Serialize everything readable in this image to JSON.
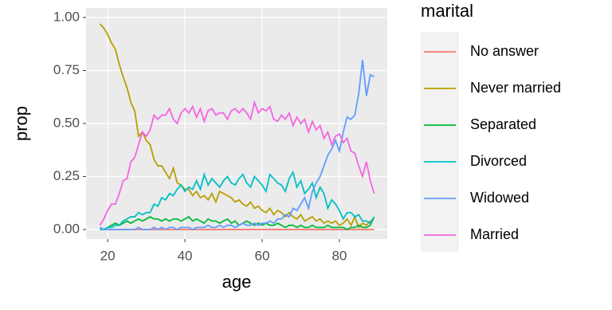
{
  "chart_data": {
    "type": "line",
    "x_label": "age",
    "y_label": "prop",
    "legend_title": "marital",
    "x": [
      18,
      19,
      20,
      21,
      22,
      23,
      24,
      25,
      26,
      27,
      28,
      29,
      30,
      31,
      32,
      33,
      34,
      35,
      36,
      37,
      38,
      39,
      40,
      41,
      42,
      43,
      44,
      45,
      46,
      47,
      48,
      49,
      50,
      51,
      52,
      53,
      54,
      55,
      56,
      57,
      58,
      59,
      60,
      61,
      62,
      63,
      64,
      65,
      66,
      67,
      68,
      69,
      70,
      71,
      72,
      73,
      74,
      75,
      76,
      77,
      78,
      79,
      80,
      81,
      82,
      83,
      84,
      85,
      86,
      87,
      88,
      89
    ],
    "series": [
      {
        "name": "No answer",
        "color": "#F8766D",
        "values": [
          0,
          0,
          0,
          0,
          0,
          0,
          0,
          0,
          0,
          0,
          0,
          0,
          0,
          0,
          0,
          0,
          0,
          0,
          0,
          0,
          0,
          0,
          0,
          0,
          0,
          0,
          0,
          0,
          0,
          0,
          0,
          0,
          0,
          0,
          0,
          0,
          0,
          0,
          0,
          0,
          0,
          0,
          0,
          0,
          0,
          0,
          0,
          0,
          0,
          0,
          0,
          0,
          0,
          0,
          0,
          0,
          0,
          0,
          0,
          0,
          0,
          0,
          0,
          0,
          0,
          0,
          0,
          0,
          0,
          0,
          0,
          0
        ]
      },
      {
        "name": "Never married",
        "color": "#B79F00",
        "values": [
          0.97,
          0.95,
          0.92,
          0.88,
          0.85,
          0.78,
          0.72,
          0.67,
          0.6,
          0.56,
          0.44,
          0.46,
          0.42,
          0.4,
          0.33,
          0.3,
          0.3,
          0.27,
          0.24,
          0.29,
          0.22,
          0.21,
          0.19,
          0.19,
          0.16,
          0.18,
          0.15,
          0.16,
          0.14,
          0.17,
          0.13,
          0.18,
          0.17,
          0.16,
          0.15,
          0.13,
          0.14,
          0.12,
          0.11,
          0.13,
          0.1,
          0.11,
          0.09,
          0.08,
          0.1,
          0.07,
          0.09,
          0.08,
          0.06,
          0.08,
          0.06,
          0.05,
          0.07,
          0.04,
          0.05,
          0.06,
          0.04,
          0.05,
          0.03,
          0.04,
          0.03,
          0.04,
          0.02,
          0.03,
          0.05,
          0.02,
          0.06,
          0.01,
          0.03,
          0.02,
          0.04,
          0.05
        ]
      },
      {
        "name": "Separated",
        "color": "#00BA38",
        "values": [
          0.01,
          0,
          0.01,
          0.02,
          0.03,
          0.02,
          0.03,
          0.04,
          0.03,
          0.04,
          0.05,
          0.04,
          0.05,
          0.06,
          0.05,
          0.05,
          0.04,
          0.05,
          0.04,
          0.05,
          0.05,
          0.04,
          0.05,
          0.06,
          0.04,
          0.05,
          0.04,
          0.03,
          0.05,
          0.04,
          0.04,
          0.03,
          0.04,
          0.05,
          0.03,
          0.04,
          0.02,
          0.03,
          0.04,
          0.03,
          0.02,
          0.03,
          0.02,
          0.03,
          0.02,
          0.02,
          0.03,
          0.02,
          0.01,
          0.02,
          0.02,
          0.01,
          0.02,
          0.01,
          0.01,
          0.02,
          0.01,
          0.01,
          0.01,
          0.02,
          0.01,
          0.01,
          0.01,
          0.01,
          0,
          0.01,
          0.01,
          0.02,
          0.01,
          0.01,
          0.02,
          0.06
        ]
      },
      {
        "name": "Divorced",
        "color": "#00BFC4",
        "values": [
          0,
          0,
          0.01,
          0.01,
          0.02,
          0.02,
          0.04,
          0.05,
          0.06,
          0.06,
          0.08,
          0.07,
          0.08,
          0.08,
          0.12,
          0.11,
          0.15,
          0.14,
          0.17,
          0.16,
          0.19,
          0.21,
          0.18,
          0.2,
          0.19,
          0.23,
          0.19,
          0.26,
          0.21,
          0.24,
          0.22,
          0.2,
          0.23,
          0.25,
          0.22,
          0.21,
          0.24,
          0.26,
          0.22,
          0.2,
          0.25,
          0.23,
          0.21,
          0.18,
          0.26,
          0.24,
          0.22,
          0.21,
          0.18,
          0.24,
          0.27,
          0.2,
          0.23,
          0.17,
          0.19,
          0.22,
          0.15,
          0.2,
          0.17,
          0.1,
          0.14,
          0.12,
          0.09,
          0.05,
          0.08,
          0.08,
          0.06,
          0.07,
          0.04,
          0.04,
          0.03,
          0.06
        ]
      },
      {
        "name": "Widowed",
        "color": "#619CFF",
        "values": [
          0.01,
          0,
          0,
          0,
          0,
          0,
          0,
          0,
          0,
          0,
          0.01,
          0,
          0,
          0,
          0.01,
          0,
          0.01,
          0,
          0.01,
          0.01,
          0,
          0.01,
          0.01,
          0.01,
          0,
          0.01,
          0.01,
          0.01,
          0.02,
          0.01,
          0.01,
          0.02,
          0.01,
          0.02,
          0.02,
          0.01,
          0.02,
          0.03,
          0.02,
          0.02,
          0.03,
          0.02,
          0.03,
          0.03,
          0.04,
          0.03,
          0.05,
          0.05,
          0.07,
          0.06,
          0.1,
          0.09,
          0.12,
          0.15,
          0.1,
          0.18,
          0.22,
          0.25,
          0.3,
          0.35,
          0.38,
          0.42,
          0.37,
          0.46,
          0.53,
          0.52,
          0.54,
          0.64,
          0.8,
          0.63,
          0.73,
          0.72
        ]
      },
      {
        "name": "Married",
        "color": "#F564E3",
        "values": [
          0.02,
          0.05,
          0.09,
          0.12,
          0.12,
          0.17,
          0.23,
          0.24,
          0.32,
          0.34,
          0.4,
          0.46,
          0.44,
          0.47,
          0.54,
          0.52,
          0.54,
          0.54,
          0.57,
          0.52,
          0.5,
          0.55,
          0.57,
          0.55,
          0.58,
          0.53,
          0.57,
          0.51,
          0.56,
          0.57,
          0.54,
          0.55,
          0.55,
          0.52,
          0.56,
          0.57,
          0.55,
          0.57,
          0.55,
          0.52,
          0.6,
          0.55,
          0.57,
          0.56,
          0.58,
          0.52,
          0.51,
          0.54,
          0.52,
          0.55,
          0.49,
          0.53,
          0.5,
          0.52,
          0.46,
          0.51,
          0.47,
          0.49,
          0.43,
          0.46,
          0.4,
          0.44,
          0.45,
          0.41,
          0.43,
          0.37,
          0.36,
          0.3,
          0.25,
          0.32,
          0.23,
          0.17
        ]
      }
    ],
    "xlim": [
      14.4,
      92.4
    ],
    "xticks": [
      20,
      40,
      60,
      80
    ],
    "ylim": [
      -0.045,
      1.045
    ],
    "yticks": [
      {
        "value": 0,
        "label": "0.00"
      },
      {
        "value": 0.25,
        "label": "0.25"
      },
      {
        "value": 0.5,
        "label": "0.50"
      },
      {
        "value": 0.75,
        "label": "0.75"
      },
      {
        "value": 1,
        "label": "1.00"
      }
    ],
    "grid": true,
    "legend": "right"
  }
}
